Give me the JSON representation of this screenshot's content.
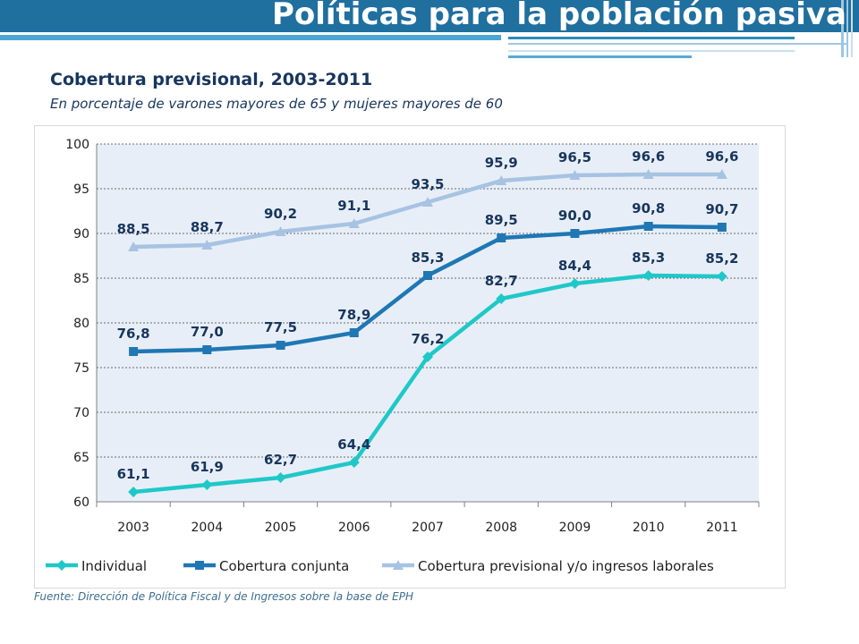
{
  "header": {
    "title": "Políticas para la población pasiva",
    "band_color": "#1f6f9f",
    "accent_color": "#4aa6d3"
  },
  "chart_data": {
    "type": "line",
    "title": "Cobertura previsional, 2003-2011",
    "subtitle": "En porcentaje de varones mayores de 65 y mujeres mayores de 60",
    "xlabel": "",
    "ylabel": "",
    "categories": [
      "2003",
      "2004",
      "2005",
      "2006",
      "2007",
      "2008",
      "2009",
      "2010",
      "2011"
    ],
    "ylim": [
      60,
      100
    ],
    "yticks": [
      "60",
      "65",
      "70",
      "75",
      "80",
      "85",
      "90",
      "95",
      "100"
    ],
    "grid": true,
    "legend_position": "bottom",
    "plot_background": "#e8eef7",
    "series": [
      {
        "name": "Individual",
        "marker": "diamond",
        "color": "#1fc8c8",
        "values": [
          61.1,
          61.9,
          62.7,
          64.4,
          76.2,
          82.7,
          84.4,
          85.3,
          85.2
        ],
        "labels": [
          "61,1",
          "61,9",
          "62,7",
          "64,4",
          "76,2",
          "82,7",
          "84,4",
          "85,3",
          "85,2"
        ]
      },
      {
        "name": "Cobertura conjunta",
        "marker": "square",
        "color": "#1f77b4",
        "values": [
          76.8,
          77.0,
          77.5,
          78.9,
          85.3,
          89.5,
          90.0,
          90.8,
          90.7
        ],
        "labels": [
          "76,8",
          "77,0",
          "77,5",
          "78,9",
          "85,3",
          "89,5",
          "90,0",
          "90,8",
          "90,7"
        ]
      },
      {
        "name": "Cobertura previsional y/o ingresos laborales",
        "marker": "triangle",
        "color": "#a6c3e2",
        "values": [
          88.5,
          88.7,
          90.2,
          91.1,
          93.5,
          95.9,
          96.5,
          96.6,
          96.6
        ],
        "labels": [
          "88,5",
          "88,7",
          "90,2",
          "91,1",
          "93,5",
          "95,9",
          "96,5",
          "96,6",
          "96,6"
        ]
      }
    ]
  },
  "footer": {
    "source": "Fuente: Dirección de Política Fiscal y de Ingresos sobre la base de EPH"
  }
}
